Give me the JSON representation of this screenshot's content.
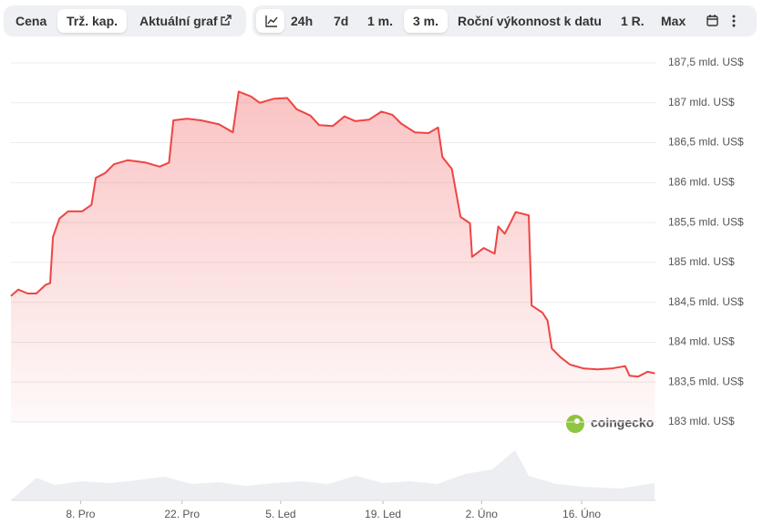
{
  "tabs": {
    "left": [
      "Cena",
      "Trž. kap.",
      "Aktuální graf"
    ],
    "right": [
      "24h",
      "7d",
      "1 m.",
      "3 m.",
      "Roční výkonnost k datu",
      "1 R.",
      "Max"
    ]
  },
  "watermark": "coingecko",
  "chart_data": {
    "type": "line",
    "x": [
      0,
      1.0,
      2.3,
      3.5,
      4.8,
      5.4,
      5.8,
      6.7,
      7.9,
      9.8,
      11.1,
      11.7,
      13.0,
      14.2,
      16.1,
      18.6,
      20.5,
      21.8,
      22.4,
      24.3,
      26.2,
      28.7,
      30.6,
      31.4,
      33.1,
      34.3,
      36.2,
      38.1,
      39.4,
      41.3,
      42.5,
      44.4,
      46.0,
      47.5,
      49.4,
      51.1,
      52.6,
      53.8,
      55.7,
      57.6,
      58.9,
      59.5,
      60.8,
      62.0,
      63.3,
      63.6,
      65.2,
      66.7,
      67.2,
      68.1,
      68.9,
      69.6,
      71.4,
      71.8,
      73.3,
      74.0,
      74.6,
      75.8,
      77.1,
      79.0,
      80.9,
      82.8,
      84.7,
      85.3,
      86.5,
      87.8,
      88.8
    ],
    "series": [
      {
        "color": "#ef4444",
        "values": [
          184.58,
          184.66,
          184.61,
          184.61,
          184.72,
          184.74,
          185.32,
          185.55,
          185.64,
          185.64,
          185.72,
          186.06,
          186.12,
          186.23,
          186.28,
          186.25,
          186.2,
          186.25,
          186.78,
          186.8,
          186.78,
          186.73,
          186.63,
          187.14,
          187.08,
          187.0,
          187.05,
          187.06,
          186.92,
          186.84,
          186.72,
          186.71,
          186.83,
          186.77,
          186.79,
          186.89,
          186.85,
          186.74,
          186.63,
          186.62,
          186.69,
          186.32,
          186.17,
          185.57,
          185.49,
          185.07,
          185.18,
          185.11,
          185.45,
          185.36,
          185.5,
          185.63,
          185.59,
          184.46,
          184.37,
          184.27,
          183.92,
          183.81,
          183.72,
          183.67,
          183.66,
          183.67,
          183.7,
          183.58,
          183.57,
          183.63,
          183.61
        ]
      }
    ],
    "xlim": [
      0,
      89
    ],
    "xticks": [
      {
        "value": 9.6,
        "label": "8. Pro"
      },
      {
        "value": 23.6,
        "label": "22. Pro"
      },
      {
        "value": 37.2,
        "label": "5. Led"
      },
      {
        "value": 51.3,
        "label": "19. Led"
      },
      {
        "value": 64.9,
        "label": "2. Úno"
      },
      {
        "value": 78.7,
        "label": "16. Úno"
      }
    ],
    "ylim": [
      183,
      187.5
    ],
    "yticks": [
      {
        "value": 183,
        "label": "183 mld. US$"
      },
      {
        "value": 183.5,
        "label": "183,5 mld. US$"
      },
      {
        "value": 184,
        "label": "184 mld. US$"
      },
      {
        "value": 184.5,
        "label": "184,5 mld. US$"
      },
      {
        "value": 185,
        "label": "185 mld. US$"
      },
      {
        "value": 185.5,
        "label": "185,5 mld. US$"
      },
      {
        "value": 186,
        "label": "186 mld. US$"
      },
      {
        "value": 186.5,
        "label": "186,5 mld. US$"
      },
      {
        "value": 187,
        "label": "187 mld. US$"
      },
      {
        "value": 187.5,
        "label": "187,5 mld. US$"
      }
    ],
    "grid": true
  }
}
